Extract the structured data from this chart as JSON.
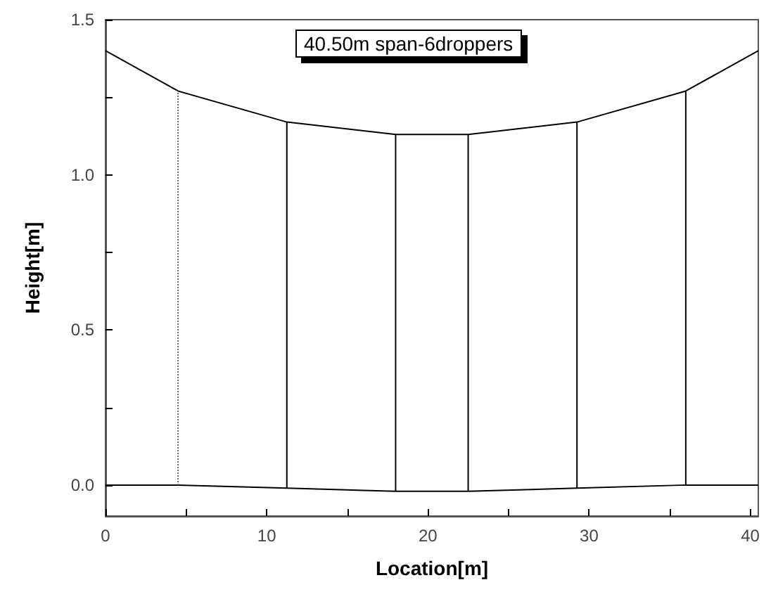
{
  "chart_data": {
    "type": "line",
    "title": "40.50m span-6droppers",
    "xlabel": "Location[m]",
    "ylabel": "Height[m]",
    "xlim": [
      0,
      40.5
    ],
    "ylim": [
      -0.1,
      1.5
    ],
    "xticks": [
      0,
      {
        "value": 5,
        "label": null
      },
      10,
      {
        "value": 15,
        "label": null
      },
      20,
      {
        "value": 25,
        "label": null
      },
      30,
      {
        "value": 35,
        "label": null
      },
      40
    ],
    "yticks": [
      {
        "value": 0,
        "label": "0.0"
      },
      {
        "value": 0.25,
        "label": null
      },
      {
        "value": 0.5,
        "label": "0.5"
      },
      {
        "value": 0.75,
        "label": null
      },
      {
        "value": 1,
        "label": "1.0"
      },
      {
        "value": 1.25,
        "label": null
      },
      {
        "value": 1.5,
        "label": "1.5"
      }
    ],
    "grid": false,
    "marker": "none",
    "line_style": "solid",
    "series": [
      {
        "color": "#000000",
        "x": [
          0,
          4.5,
          11.25,
          18,
          22.5,
          29.25,
          36,
          40.5
        ],
        "values": [
          1.4,
          1.27,
          1.17,
          1.13,
          1.13,
          1.17,
          1.27,
          1.4
        ]
      },
      {
        "color": "#000000",
        "x": [
          0,
          4.5,
          11.25,
          18,
          22.5,
          29.25,
          36,
          40.5
        ],
        "values": [
          0,
          0,
          -0.01,
          -0.02,
          -0.02,
          -0.01,
          0,
          0
        ]
      },
      {
        "color": "#666666",
        "line_style": "dotted",
        "x": [
          4.5,
          4.5
        ],
        "values": [
          0,
          1.27
        ]
      },
      {
        "color": "#000000",
        "x": [
          11.25,
          11.25
        ],
        "values": [
          -0.01,
          1.17
        ]
      },
      {
        "color": "#000000",
        "x": [
          18,
          18
        ],
        "values": [
          -0.02,
          1.13
        ]
      },
      {
        "color": "#000000",
        "x": [
          22.5,
          22.5
        ],
        "values": [
          -0.02,
          1.13
        ]
      },
      {
        "color": "#000000",
        "x": [
          29.25,
          29.25
        ],
        "values": [
          -0.01,
          1.17
        ]
      },
      {
        "color": "#000000",
        "x": [
          36,
          36
        ],
        "values": [
          0,
          1.27
        ]
      }
    ]
  }
}
